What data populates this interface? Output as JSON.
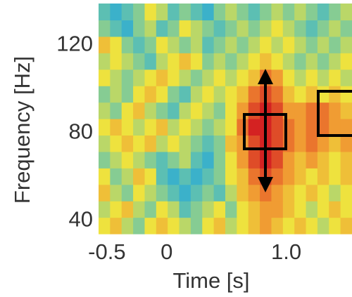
{
  "chart_data": {
    "type": "heatmap",
    "xlabel": "Time [s]",
    "ylabel": "Frequency [Hz]",
    "xlim": [
      -0.57,
      1.55
    ],
    "ylim": [
      34,
      139
    ],
    "xticks": [
      -0.5,
      0,
      {
        "value": 1,
        "label": "1.0"
      }
    ],
    "yticks": [
      40,
      80,
      120
    ],
    "zlim": [
      0,
      1
    ],
    "colormap": [
      "#1aa3e0",
      "#6cc6a8",
      "#eee23e",
      "#f08a30",
      "#d42222"
    ],
    "values": [
      [
        0.5,
        0.6,
        0.4,
        0.3,
        0.5,
        0.6,
        0.5,
        0.4,
        0.3,
        0.5,
        0.6,
        0.4,
        0.5,
        0.6,
        0.7,
        0.6,
        0.5,
        0.6,
        0.5,
        0.4,
        0.5,
        0.6
      ],
      [
        0.4,
        0.5,
        0.6,
        0.4,
        0.3,
        0.5,
        0.4,
        0.2,
        0.3,
        0.4,
        0.5,
        0.3,
        0.5,
        0.6,
        0.7,
        0.7,
        0.6,
        0.5,
        0.4,
        0.5,
        0.6,
        0.5
      ],
      [
        0.6,
        0.4,
        0.3,
        0.5,
        0.4,
        0.3,
        0.2,
        0.1,
        0.2,
        0.3,
        0.2,
        0.4,
        0.6,
        0.7,
        0.8,
        0.7,
        0.6,
        0.5,
        0.6,
        0.5,
        0.4,
        0.5
      ],
      [
        0.5,
        0.3,
        0.4,
        0.6,
        0.5,
        0.2,
        0.1,
        0.2,
        0.1,
        0.2,
        0.3,
        0.5,
        0.6,
        0.8,
        0.9,
        0.8,
        0.7,
        0.6,
        0.5,
        0.6,
        0.5,
        0.6
      ],
      [
        0.3,
        0.4,
        0.5,
        0.4,
        0.3,
        0.2,
        0.3,
        0.4,
        0.2,
        0.1,
        0.3,
        0.5,
        0.7,
        0.9,
        1.0,
        0.9,
        0.7,
        0.6,
        0.7,
        0.6,
        0.5,
        0.6
      ],
      [
        0.4,
        0.5,
        0.6,
        0.5,
        0.6,
        0.4,
        0.5,
        0.4,
        0.3,
        0.2,
        0.3,
        0.6,
        0.7,
        0.9,
        1.0,
        0.9,
        0.8,
        0.7,
        0.8,
        0.7,
        0.6,
        0.7
      ],
      [
        0.5,
        0.6,
        0.5,
        0.4,
        0.5,
        0.6,
        0.4,
        0.5,
        0.4,
        0.3,
        0.4,
        0.5,
        0.8,
        1.0,
        1.0,
        0.9,
        0.8,
        0.7,
        0.8,
        0.8,
        0.7,
        0.7
      ],
      [
        0.4,
        0.3,
        0.5,
        0.6,
        0.4,
        0.3,
        0.2,
        0.4,
        0.5,
        0.4,
        0.3,
        0.5,
        0.7,
        0.9,
        1.0,
        0.9,
        0.7,
        0.7,
        0.8,
        0.8,
        0.7,
        0.6
      ],
      [
        0.3,
        0.4,
        0.3,
        0.5,
        0.6,
        0.5,
        0.3,
        0.2,
        0.4,
        0.5,
        0.4,
        0.5,
        0.6,
        0.8,
        0.9,
        0.8,
        0.6,
        0.5,
        0.6,
        0.5,
        0.6,
        0.5
      ],
      [
        0.5,
        0.4,
        0.3,
        0.4,
        0.5,
        0.6,
        0.5,
        0.4,
        0.3,
        0.4,
        0.5,
        0.4,
        0.5,
        0.6,
        0.8,
        0.7,
        0.5,
        0.4,
        0.5,
        0.4,
        0.5,
        0.4
      ],
      [
        0.4,
        0.5,
        0.4,
        0.3,
        0.2,
        0.4,
        0.5,
        0.6,
        0.5,
        0.3,
        0.4,
        0.3,
        0.4,
        0.5,
        0.6,
        0.5,
        0.4,
        0.3,
        0.4,
        0.3,
        0.4,
        0.5
      ],
      [
        0.6,
        0.5,
        0.3,
        0.2,
        0.3,
        0.5,
        0.4,
        0.3,
        0.4,
        0.2,
        0.3,
        0.4,
        0.3,
        0.4,
        0.5,
        0.4,
        0.5,
        0.4,
        0.3,
        0.4,
        0.3,
        0.4
      ],
      [
        0.3,
        0.2,
        0.1,
        0.3,
        0.4,
        0.2,
        0.3,
        0.5,
        0.4,
        0.3,
        0.2,
        0.3,
        0.4,
        0.3,
        0.4,
        0.5,
        0.4,
        0.3,
        0.2,
        0.3,
        0.4,
        0.3
      ],
      [
        0.2,
        0.1,
        0.2,
        0.3,
        0.5,
        0.4,
        0.2,
        0.3,
        0.2,
        0.1,
        0.3,
        0.4,
        0.3,
        0.2,
        0.3,
        0.4,
        0.3,
        0.4,
        0.3,
        0.2,
        0.3,
        0.4
      ]
    ]
  }
}
